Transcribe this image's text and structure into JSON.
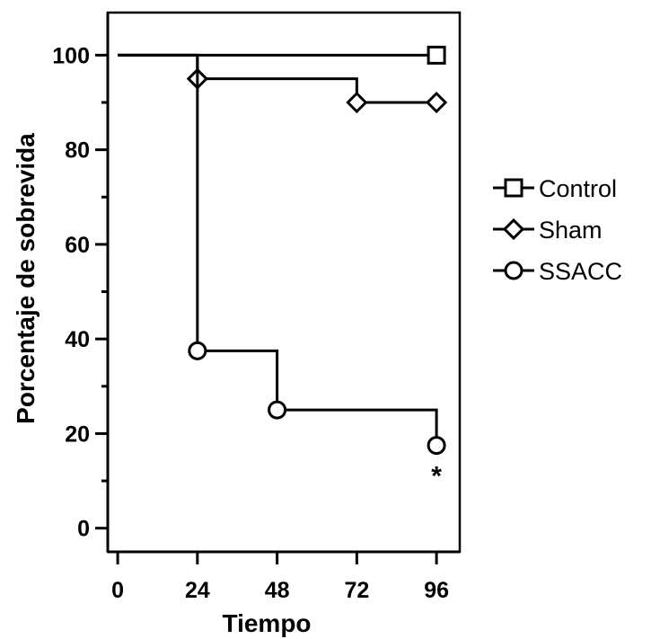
{
  "chart_data": {
    "type": "line",
    "step": true,
    "xlabel": "Tiempo",
    "ylabel": "Porcentaje de sobrevida",
    "xlim": [
      -3,
      103
    ],
    "ylim": [
      -5,
      109
    ],
    "xticks": [
      0,
      24,
      48,
      72,
      96
    ],
    "xtick_labels": [
      "0",
      "24",
      "48",
      "72",
      "96"
    ],
    "yticks": [
      0,
      20,
      40,
      60,
      80,
      100
    ],
    "ytick_labels": [
      "0",
      "20",
      "40",
      "60",
      "80",
      "100"
    ],
    "y_minor_ticks": [
      10,
      30,
      50,
      70,
      90
    ],
    "grid": false,
    "legend_position": "right",
    "series": [
      {
        "name": "Control",
        "marker": "square",
        "x": [
          0,
          96
        ],
        "y": [
          100,
          100
        ],
        "marked_points": [
          [
            96,
            100
          ]
        ]
      },
      {
        "name": "Sham",
        "marker": "diamond",
        "x": [
          0,
          24,
          72,
          96
        ],
        "y": [
          100,
          95,
          90,
          90
        ],
        "marked_points": [
          [
            24,
            95
          ],
          [
            72,
            90
          ],
          [
            96,
            90
          ]
        ]
      },
      {
        "name": "SSACC",
        "marker": "circle",
        "x": [
          0,
          24,
          48,
          96
        ],
        "y": [
          100,
          37.5,
          25,
          17.5
        ],
        "marked_points": [
          [
            24,
            37.5
          ],
          [
            48,
            25
          ],
          [
            96,
            17.5
          ]
        ]
      }
    ],
    "annotations": [
      {
        "text": "*",
        "x": 96,
        "y": 17.5,
        "placement": "below"
      }
    ]
  }
}
